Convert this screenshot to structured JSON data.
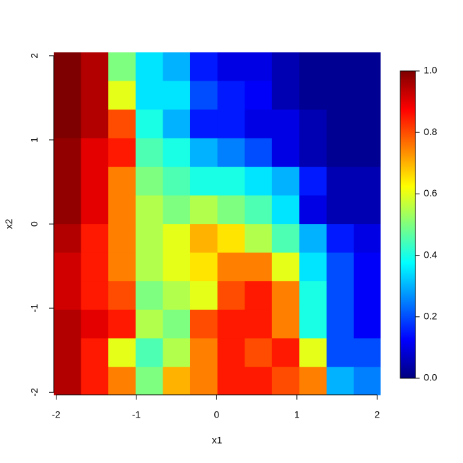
{
  "chart_data": {
    "type": "heatmap",
    "x_label": "x1",
    "y_label": "x2",
    "x": [
      -1.86,
      -1.52,
      -1.18,
      -0.84,
      -0.5,
      -0.16,
      0.18,
      0.52,
      0.86,
      1.2,
      1.54,
      1.88
    ],
    "y": [
      1.87,
      1.53,
      1.19,
      0.85,
      0.51,
      0.17,
      -0.17,
      -0.51,
      -0.85,
      -1.19,
      -1.53,
      -1.87
    ],
    "z": [
      [
        1.0,
        0.95,
        0.5,
        0.35,
        0.3,
        0.15,
        0.1,
        0.1,
        0.05,
        0.02,
        0.02,
        0.02
      ],
      [
        1.0,
        0.95,
        0.6,
        0.35,
        0.35,
        0.2,
        0.15,
        0.12,
        0.05,
        0.02,
        0.02,
        0.02
      ],
      [
        1.0,
        0.95,
        0.8,
        0.4,
        0.3,
        0.15,
        0.15,
        0.1,
        0.1,
        0.05,
        0.02,
        0.02
      ],
      [
        0.98,
        0.9,
        0.85,
        0.45,
        0.4,
        0.3,
        0.25,
        0.2,
        0.1,
        0.05,
        0.02,
        0.02
      ],
      [
        0.98,
        0.9,
        0.75,
        0.5,
        0.45,
        0.4,
        0.4,
        0.35,
        0.3,
        0.15,
        0.05,
        0.05
      ],
      [
        0.98,
        0.9,
        0.75,
        0.55,
        0.5,
        0.55,
        0.5,
        0.45,
        0.35,
        0.1,
        0.05,
        0.05
      ],
      [
        0.95,
        0.85,
        0.75,
        0.55,
        0.6,
        0.7,
        0.65,
        0.55,
        0.45,
        0.3,
        0.15,
        0.1
      ],
      [
        0.92,
        0.85,
        0.75,
        0.55,
        0.6,
        0.65,
        0.75,
        0.75,
        0.6,
        0.35,
        0.2,
        0.12
      ],
      [
        0.92,
        0.85,
        0.8,
        0.5,
        0.55,
        0.6,
        0.8,
        0.85,
        0.75,
        0.4,
        0.2,
        0.12
      ],
      [
        0.95,
        0.9,
        0.85,
        0.55,
        0.5,
        0.8,
        0.85,
        0.85,
        0.75,
        0.4,
        0.2,
        0.12
      ],
      [
        0.95,
        0.85,
        0.6,
        0.45,
        0.55,
        0.75,
        0.85,
        0.8,
        0.85,
        0.6,
        0.2,
        0.2
      ],
      [
        0.95,
        0.85,
        0.75,
        0.5,
        0.7,
        0.75,
        0.85,
        0.85,
        0.8,
        0.75,
        0.3,
        0.25
      ]
    ],
    "xlim": [
      -2.03,
      2.04
    ],
    "ylim": [
      -2.03,
      2.04
    ],
    "xticks": [
      -2,
      -1,
      0,
      1,
      2
    ],
    "yticks": [
      -2,
      -1,
      0,
      1,
      2
    ],
    "zlim": [
      0,
      1
    ],
    "zticks": [
      {
        "value": 0,
        "label": "0.0"
      },
      {
        "value": 0.2,
        "label": "0.2"
      },
      {
        "value": 0.4,
        "label": "0.4"
      },
      {
        "value": 0.6,
        "label": "0.6"
      },
      {
        "value": 0.8,
        "label": "0.8"
      },
      {
        "value": 1,
        "label": "1.0"
      }
    ],
    "colors": [
      "#00007F",
      "#0000FF",
      "#007FFF",
      "#00FFFF",
      "#7FFF7F",
      "#FFFF00",
      "#FF7F00",
      "#FF0000",
      "#7F0000"
    ]
  }
}
